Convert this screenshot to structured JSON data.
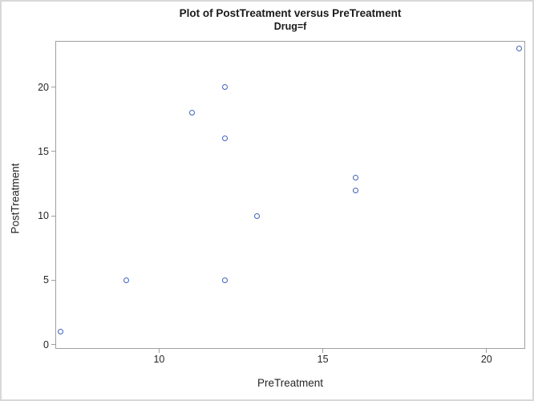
{
  "figure": {
    "background": "#ffffff",
    "border_color": "#d8d8d8"
  },
  "chart_data": {
    "type": "scatter",
    "title": "Plot of PostTreatment versus PreTreatment",
    "subtitle": "Drug=f",
    "xlabel": "PreTreatment",
    "ylabel": "PostTreatment",
    "xlim": [
      6.83,
      21.18
    ],
    "ylim": [
      -0.34,
      23.6
    ],
    "x_ticks": [
      10,
      15,
      20
    ],
    "y_ticks": [
      0,
      5,
      10,
      15,
      20
    ],
    "series": [
      {
        "name": "Drug=f",
        "points": [
          {
            "x": 7,
            "y": 1
          },
          {
            "x": 9,
            "y": 5
          },
          {
            "x": 11,
            "y": 18
          },
          {
            "x": 12,
            "y": 5
          },
          {
            "x": 12,
            "y": 16
          },
          {
            "x": 12,
            "y": 20
          },
          {
            "x": 13,
            "y": 10
          },
          {
            "x": 16,
            "y": 12
          },
          {
            "x": 16,
            "y": 13
          },
          {
            "x": 21,
            "y": 23
          }
        ]
      }
    ],
    "marker": {
      "shape": "open-circle",
      "color": "#4161bd",
      "diameter": 7,
      "stroke_width": 1.5
    },
    "frame_color": "#9f9f9f",
    "grid": false,
    "legend": false
  }
}
